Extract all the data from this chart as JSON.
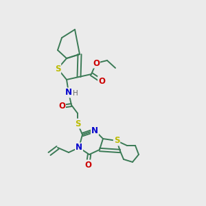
{
  "bg_color": "#ebebeb",
  "bond_color": "#3a7a55",
  "bond_width": 1.4,
  "atom_colors": {
    "S": "#bbbb00",
    "N": "#0000cc",
    "O": "#cc0000",
    "H": "#666666"
  },
  "font_size": 8.5
}
